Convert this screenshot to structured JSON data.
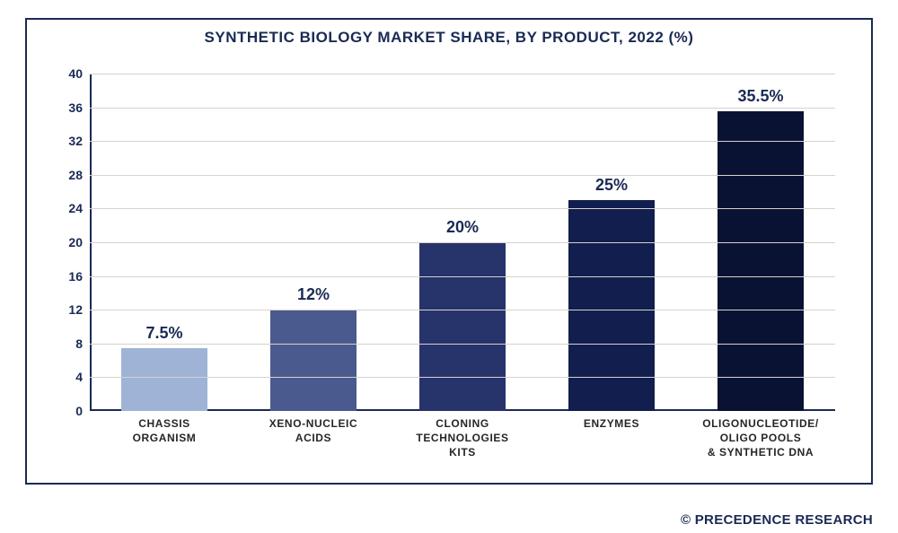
{
  "chart": {
    "type": "bar",
    "title": "SYNTHETIC BIOLOGY MARKET SHARE, BY PRODUCT, 2022 (%)",
    "title_fontsize": 17,
    "title_color": "#1a2a55",
    "border_color": "#1a2a55",
    "background_color": "#ffffff",
    "grid_color": "#d7d2cc",
    "axis_color": "#1a2a55",
    "bar_width_pct": 58,
    "ylim": [
      0,
      40
    ],
    "ytick_step": 4,
    "yticks": [
      0,
      4,
      8,
      12,
      16,
      20,
      24,
      28,
      32,
      36,
      40
    ],
    "label_fontsize": 12,
    "value_fontsize": 18,
    "tick_fontsize": 14,
    "categories": [
      "CHASSIS\nORGANISM",
      "XENO-NUCLEIC\nACIDS",
      "CLONING TECHNOLOGIES\nKITS",
      "ENZYMES",
      "OLIGONUCLEOTIDE/\nOLIGO POOLS\n& SYNTHETIC DNA"
    ],
    "values": [
      7.5,
      12,
      20,
      25,
      35.5
    ],
    "display_values": [
      "7.5%",
      "12%",
      "20%",
      "25%",
      "35.5%"
    ],
    "bar_colors": [
      "#9eb3d6",
      "#4a5a8e",
      "#27336b",
      "#111e4e",
      "#0a1233"
    ]
  },
  "credit": "© PRECEDENCE RESEARCH"
}
